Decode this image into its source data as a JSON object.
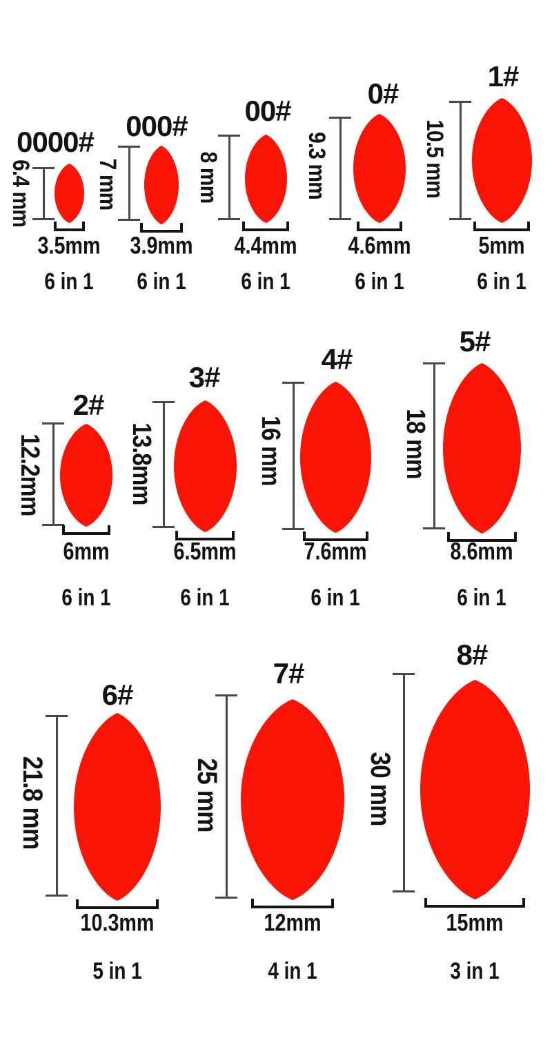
{
  "chart": {
    "title": "fishing-float-size-chart",
    "unit": "mm"
  },
  "colors": {
    "float_red": "#f91405",
    "dimension_line": "#4c4647",
    "bracket_black": "#171412",
    "text_black": "#131313",
    "background": "#ffffff"
  },
  "items": [
    {
      "id": "0000",
      "label": "0000#",
      "height_label": "6.4 mm",
      "width_label": "3.5mm",
      "pack_label": "6 in 1"
    },
    {
      "id": "000",
      "label": "000#",
      "height_label": "7 mm",
      "width_label": "3.9mm",
      "pack_label": "6 in 1"
    },
    {
      "id": "00",
      "label": "00#",
      "height_label": "8 mm",
      "width_label": "4.4mm",
      "pack_label": "6 in 1"
    },
    {
      "id": "0",
      "label": "0#",
      "height_label": "9.3 mm",
      "width_label": "4.6mm",
      "pack_label": "6 in 1"
    },
    {
      "id": "1",
      "label": "1#",
      "height_label": "10.5 mm",
      "width_label": "5mm",
      "pack_label": "6 in 1"
    },
    {
      "id": "2",
      "label": "2#",
      "height_label": "12.2mm",
      "width_label": "6mm",
      "pack_label": "6 in 1"
    },
    {
      "id": "3",
      "label": "3#",
      "height_label": "13.8mm",
      "width_label": "6.5mm",
      "pack_label": "6 in 1"
    },
    {
      "id": "4",
      "label": "4#",
      "height_label": "16 mm",
      "width_label": "7.6mm",
      "pack_label": "6 in 1"
    },
    {
      "id": "5",
      "label": "5#",
      "height_label": "18 mm",
      "width_label": "8.6mm",
      "pack_label": "6 in 1"
    },
    {
      "id": "6",
      "label": "6#",
      "height_label": "21.8 mm",
      "width_label": "10.3mm",
      "pack_label": "5 in 1"
    },
    {
      "id": "7",
      "label": "7#",
      "height_label": "25 mm",
      "width_label": "12mm",
      "pack_label": "4 in 1"
    },
    {
      "id": "8",
      "label": "8#",
      "height_label": "30 mm",
      "width_label": "15mm",
      "pack_label": "3 in 1"
    }
  ]
}
